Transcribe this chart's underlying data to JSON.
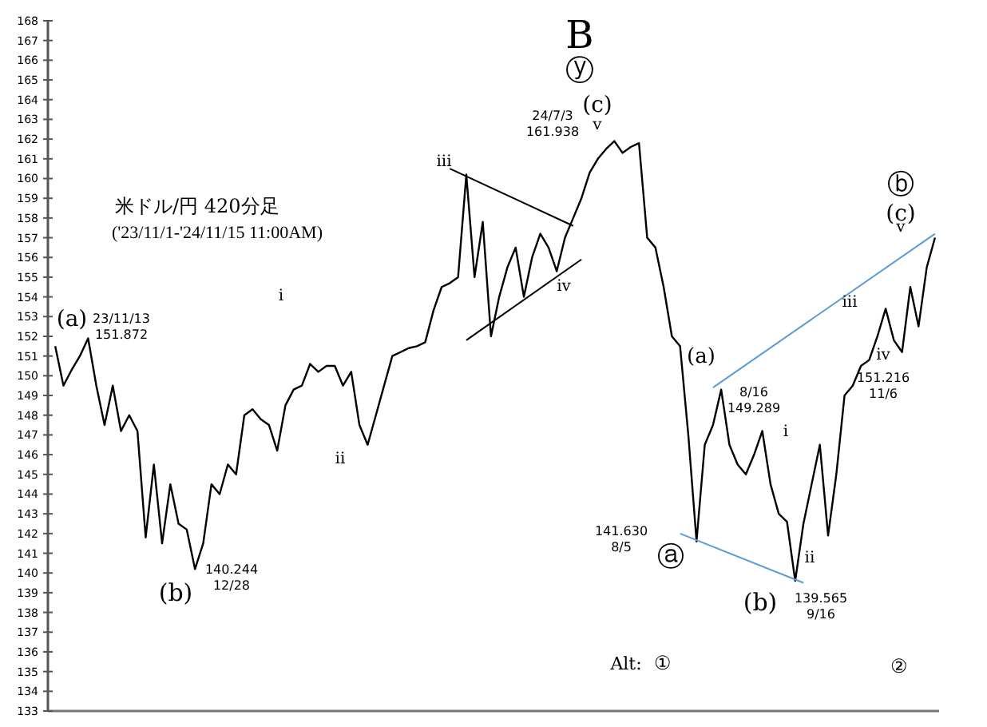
{
  "chart_data": {
    "type": "line",
    "title": "米ドル/円 420分足",
    "subtitle": "('23/11/1-'24/11/15 11:00AM)",
    "categories": [
      null,
      null,
      null,
      null,
      null,
      null,
      null,
      null,
      null,
      null,
      null,
      null,
      null,
      null,
      null,
      null,
      null,
      null,
      null,
      null,
      null,
      null,
      null,
      null,
      null,
      null,
      null,
      null,
      null,
      null,
      null,
      null,
      null,
      null,
      null,
      null,
      null,
      null,
      null,
      null,
      null,
      null,
      null,
      null,
      null,
      null,
      null,
      null,
      null,
      null,
      null,
      null,
      null,
      null,
      null,
      null,
      null,
      null,
      null,
      null,
      null,
      null,
      null,
      null,
      null,
      null,
      null,
      null,
      null,
      null,
      null,
      null,
      null,
      null,
      null,
      null,
      null,
      null,
      null,
      null,
      null,
      null,
      null,
      null,
      null,
      null,
      null,
      null,
      null,
      null,
      null,
      null,
      null,
      null,
      null,
      null,
      null,
      null,
      null,
      null,
      null,
      null,
      null,
      null,
      null,
      null,
      null,
      null
    ],
    "series": [
      {
        "color": "#000000",
        "values": [
          151.5,
          149.5,
          150.3,
          151.0,
          151.9,
          149.5,
          147.5,
          149.5,
          147.2,
          148,
          147.2,
          141.8,
          145.5,
          141.5,
          144.5,
          142.5,
          142.2,
          140.2,
          141.5,
          144.5,
          144,
          145.5,
          145,
          148,
          148.3,
          147.8,
          147.5,
          146.2,
          148.5,
          149.3,
          149.5,
          150.6,
          150.2,
          150.5,
          150.5,
          149.5,
          150.2,
          147.5,
          146.5,
          148,
          149.5,
          151,
          151.2,
          151.4,
          151.5,
          151.7,
          153.3,
          154.5,
          154.7,
          155,
          160.2,
          155,
          157.8,
          152,
          154,
          155.5,
          156.5,
          154,
          156,
          157.2,
          156.5,
          155.3,
          157,
          158,
          159,
          160.3,
          161,
          161.5,
          161.9,
          161.3,
          161.6,
          161.8,
          157,
          156.5,
          154.5,
          152,
          151.5,
          147,
          141.6,
          146.5,
          147.5,
          149.3,
          146.5,
          145.5,
          145,
          146,
          147.2,
          144.5,
          143,
          142.6,
          139.6,
          142.5,
          144.5,
          146.5,
          141.9,
          145,
          149,
          149.5,
          150.5,
          150.8,
          152,
          153.4,
          151.8,
          151.2,
          154.5,
          152.5,
          155.5,
          157
        ]
      },
      {
        "color": "#000000",
        "values": [
          null,
          null,
          null,
          null,
          null,
          null,
          null,
          null,
          null,
          null,
          null,
          null,
          null,
          null,
          null,
          null,
          null,
          null,
          null,
          null,
          null,
          null,
          null,
          null,
          null,
          null,
          null,
          null,
          null,
          null,
          null,
          null,
          null,
          null,
          null,
          null,
          null,
          null,
          null,
          null,
          null,
          null,
          null,
          null,
          null,
          null,
          null,
          null,
          160.5,
          null,
          null,
          null,
          null,
          null,
          null,
          null,
          null,
          null,
          null,
          null,
          null,
          null,
          null,
          157.6,
          null,
          null,
          null,
          null,
          null,
          null,
          null,
          null,
          null,
          null,
          null,
          null,
          null,
          null,
          null,
          null,
          null,
          null,
          null,
          null,
          null,
          null,
          null,
          null,
          null,
          null,
          null,
          null,
          null,
          null,
          null,
          null,
          null,
          null,
          null,
          null,
          null,
          null,
          null,
          null,
          null,
          null,
          null,
          null
        ]
      },
      {
        "color": "#000000",
        "values": [
          null,
          null,
          null,
          null,
          null,
          null,
          null,
          null,
          null,
          null,
          null,
          null,
          null,
          null,
          null,
          null,
          null,
          null,
          null,
          null,
          null,
          null,
          null,
          null,
          null,
          null,
          null,
          null,
          null,
          null,
          null,
          null,
          null,
          null,
          null,
          null,
          null,
          null,
          null,
          null,
          null,
          null,
          null,
          null,
          null,
          null,
          null,
          null,
          null,
          null,
          151.8,
          null,
          null,
          null,
          null,
          null,
          null,
          null,
          null,
          null,
          null,
          null,
          null,
          null,
          155.9,
          null,
          null,
          null,
          null,
          null,
          null,
          null,
          null,
          null,
          null,
          null,
          null,
          null,
          null,
          null,
          null,
          null,
          null,
          null,
          null,
          null,
          null,
          null,
          null,
          null,
          null,
          null,
          null,
          null,
          null,
          null,
          null,
          null,
          null,
          null,
          null,
          null,
          null,
          null,
          null,
          null,
          null,
          null
        ]
      },
      {
        "color": "#5b9bd5",
        "values": [
          null,
          null,
          null,
          null,
          null,
          null,
          null,
          null,
          null,
          null,
          null,
          null,
          null,
          null,
          null,
          null,
          null,
          null,
          null,
          null,
          null,
          null,
          null,
          null,
          null,
          null,
          null,
          null,
          null,
          null,
          null,
          null,
          null,
          null,
          null,
          null,
          null,
          null,
          null,
          null,
          null,
          null,
          null,
          null,
          null,
          null,
          null,
          null,
          null,
          null,
          null,
          null,
          null,
          null,
          null,
          null,
          null,
          null,
          null,
          null,
          null,
          null,
          null,
          null,
          null,
          null,
          null,
          null,
          null,
          null,
          null,
          null,
          null,
          null,
          null,
          null,
          null,
          null,
          null,
          null,
          149.4,
          null,
          null,
          null,
          null,
          null,
          null,
          null,
          null,
          null,
          null,
          null,
          null,
          null,
          null,
          null,
          null,
          null,
          null,
          null,
          null,
          null,
          null,
          null,
          null,
          null,
          null,
          157.2
        ]
      },
      {
        "color": "#5b9bd5",
        "values": [
          null,
          null,
          null,
          null,
          null,
          null,
          null,
          null,
          null,
          null,
          null,
          null,
          null,
          null,
          null,
          null,
          null,
          null,
          null,
          null,
          null,
          null,
          null,
          null,
          null,
          null,
          null,
          null,
          null,
          null,
          null,
          null,
          null,
          null,
          null,
          null,
          null,
          null,
          null,
          null,
          null,
          null,
          null,
          null,
          null,
          null,
          null,
          null,
          null,
          null,
          null,
          null,
          null,
          null,
          null,
          null,
          null,
          null,
          null,
          null,
          null,
          null,
          null,
          null,
          null,
          null,
          null,
          null,
          null,
          null,
          null,
          null,
          null,
          null,
          null,
          null,
          142.0,
          null,
          null,
          null,
          null,
          null,
          null,
          null,
          null,
          null,
          null,
          null,
          null,
          null,
          null,
          139.5,
          null,
          null,
          null,
          null,
          null,
          null,
          null,
          null,
          null,
          null,
          null,
          null,
          null,
          null,
          null,
          null
        ]
      }
    ],
    "ylim": [
      133,
      168
    ],
    "yticks": [
      133,
      134,
      135,
      136,
      137,
      138,
      139,
      140,
      141,
      142,
      143,
      144,
      145,
      146,
      147,
      148,
      149,
      150,
      151,
      152,
      153,
      154,
      155,
      156,
      157,
      158,
      159,
      160,
      161,
      162,
      163,
      164,
      165,
      166,
      167,
      168
    ],
    "tick_labels": "y",
    "annotations": [
      "B",
      "ⓨ",
      "(c)",
      "v",
      "24/7/3 161.938",
      "iii",
      "iv",
      "i",
      "ii",
      "(a)",
      "23/11/13 151.872",
      "(b)",
      "140.244 12/28",
      "ⓐ",
      "141.630 8/5",
      "(a)",
      "8/16 149.289",
      "(b)",
      "139.565 9/16",
      "i",
      "ii",
      "iii",
      "iv",
      "v",
      "ⓑ",
      "(c)",
      "151.216 11/6",
      "Alt:",
      "①",
      "②"
    ]
  }
}
